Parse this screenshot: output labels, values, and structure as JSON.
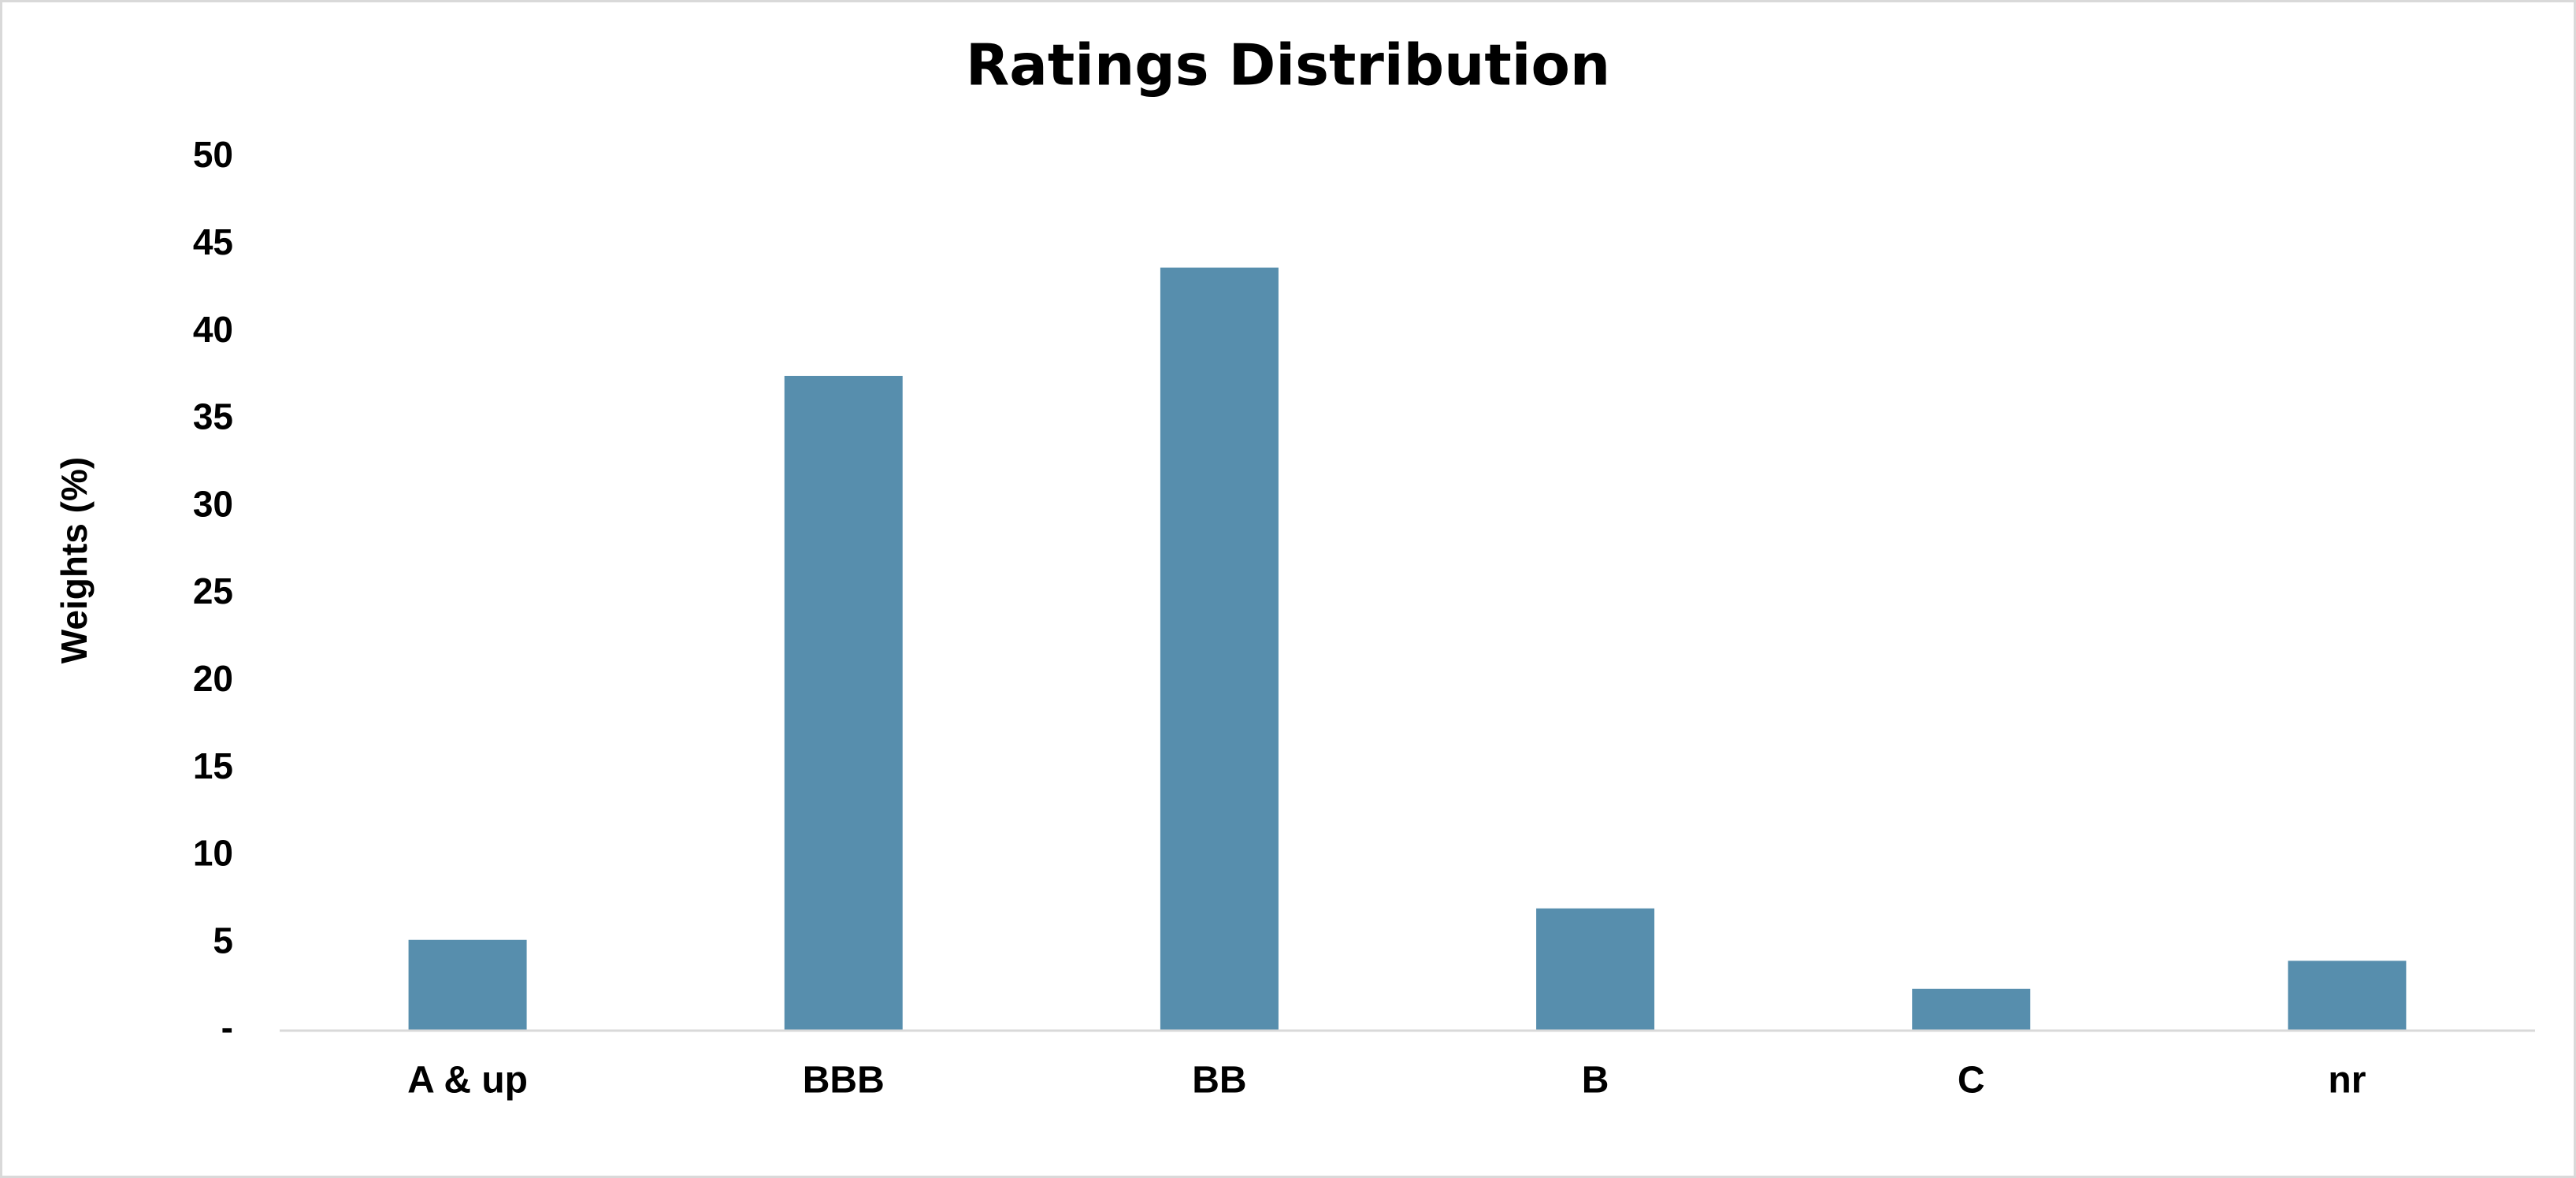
{
  "chart_data": {
    "type": "bar",
    "title": "Ratings Distribution",
    "y_label": "Weights (%)",
    "categories": [
      "A & up",
      "BBB",
      "BB",
      "B",
      "C",
      "nr"
    ],
    "values": [
      5.2,
      37.5,
      43.7,
      7.0,
      2.4,
      4.0
    ],
    "color": "#578ead",
    "ylim": [
      0,
      50
    ],
    "yticks": [
      {
        "value": 0,
        "label": "-"
      },
      5,
      10,
      15,
      20,
      25,
      30,
      35,
      40,
      45,
      50
    ],
    "grid": false
  }
}
